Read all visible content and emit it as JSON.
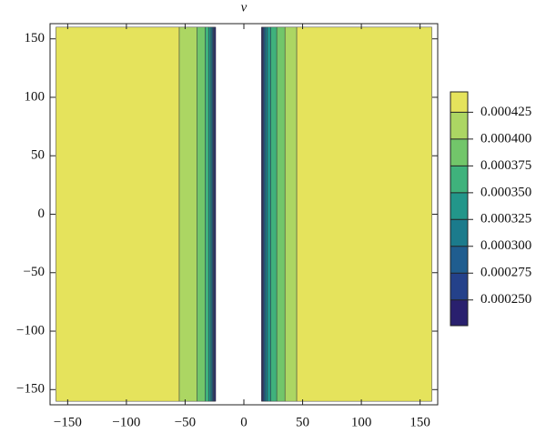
{
  "chart_data": {
    "type": "contour",
    "title": "ν",
    "xlim": [
      -165,
      165
    ],
    "ylim": [
      -163,
      163
    ],
    "xticks": [
      {
        "value": -150,
        "label": "−150"
      },
      {
        "value": -100,
        "label": "−100"
      },
      {
        "value": -50,
        "label": "−50"
      },
      0,
      50,
      100,
      150
    ],
    "yticks": [
      {
        "value": -150,
        "label": "−150"
      },
      {
        "value": -100,
        "label": "−100"
      },
      {
        "value": -50,
        "label": "−50"
      },
      0,
      50,
      100,
      150
    ],
    "y_extent": [
      -160,
      160
    ],
    "strips": {
      "x_edges": [
        [
          -160,
          -55
        ],
        [
          -55,
          -40
        ],
        [
          -40,
          -33
        ],
        [
          -33,
          -30
        ],
        [
          -30,
          -28
        ],
        [
          -28,
          -27
        ],
        [
          -27,
          -26
        ],
        [
          -26,
          -25
        ],
        [
          -25,
          -24
        ],
        [
          15,
          16
        ],
        [
          16,
          17
        ],
        [
          17,
          18
        ],
        [
          18,
          20
        ],
        [
          20,
          23
        ],
        [
          23,
          28
        ],
        [
          28,
          35
        ],
        [
          35,
          45
        ],
        [
          45,
          160
        ]
      ],
      "values": [
        0.00044,
        0.00041,
        0.00039,
        0.00036,
        0.00034,
        0.00031,
        0.00029,
        0.00026,
        0.00024,
        0.00024,
        0.00026,
        0.00029,
        0.00031,
        0.00034,
        0.00036,
        0.00039,
        0.00041,
        0.00044
      ]
    },
    "colorbar": {
      "clim": [
        0.000226,
        0.000444
      ],
      "levels": [
        0.00025,
        0.000275,
        0.0003,
        0.000325,
        0.00035,
        0.000375,
        0.0004,
        0.000425
      ],
      "ticks": [
        {
          "value": 0.00025,
          "label": "0.000250"
        },
        {
          "value": 0.000275,
          "label": "0.000275"
        },
        {
          "value": 0.0003,
          "label": "0.000300"
        },
        {
          "value": 0.000325,
          "label": "0.000325"
        },
        {
          "value": 0.00035,
          "label": "0.000350"
        },
        {
          "value": 0.000375,
          "label": "0.000375"
        },
        {
          "value": 0.0004,
          "label": "0.000400"
        },
        {
          "value": 0.000425,
          "label": "0.000425"
        }
      ],
      "colors": [
        "#29206e",
        "#24418a",
        "#1f5d8f",
        "#1b7b8c",
        "#22968a",
        "#3fb27c",
        "#72c66a",
        "#acd663",
        "#e5e35c"
      ]
    }
  }
}
